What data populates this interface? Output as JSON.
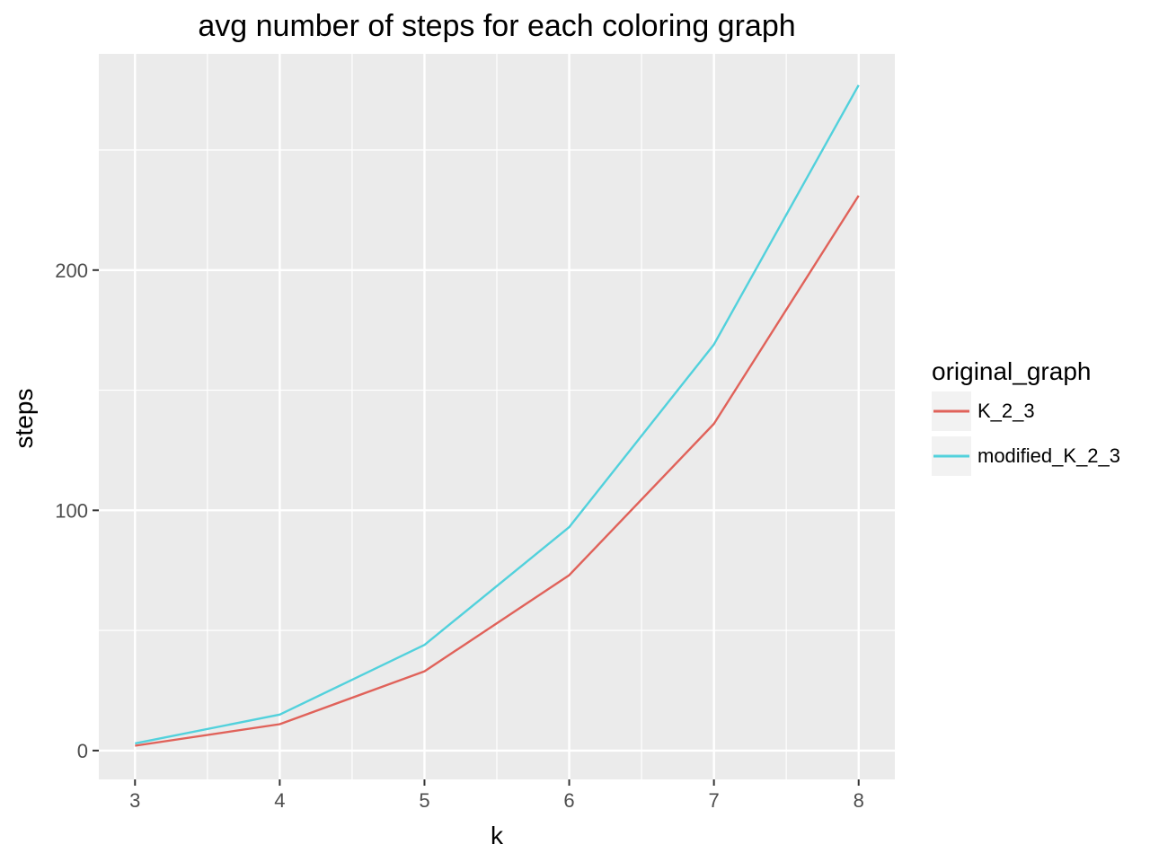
{
  "chart_data": {
    "type": "line",
    "title": "avg number of steps for each coloring graph",
    "xlabel": "k",
    "ylabel": "steps",
    "x": [
      3,
      4,
      5,
      6,
      7,
      8
    ],
    "xlim": [
      2.75,
      8.25
    ],
    "ylim": [
      -12,
      290
    ],
    "xticks": [
      3,
      4,
      5,
      6,
      7,
      8
    ],
    "yticks": [
      0,
      100,
      200
    ],
    "grid": true,
    "legend": {
      "title": "original_graph",
      "position": "right"
    },
    "series": [
      {
        "name": "K_2_3",
        "color": "#E0625A",
        "values": [
          2,
          11,
          33,
          73,
          136,
          231
        ]
      },
      {
        "name": "modified_K_2_3",
        "color": "#52D1DC",
        "values": [
          3,
          15,
          44,
          93,
          169,
          277
        ]
      }
    ]
  }
}
